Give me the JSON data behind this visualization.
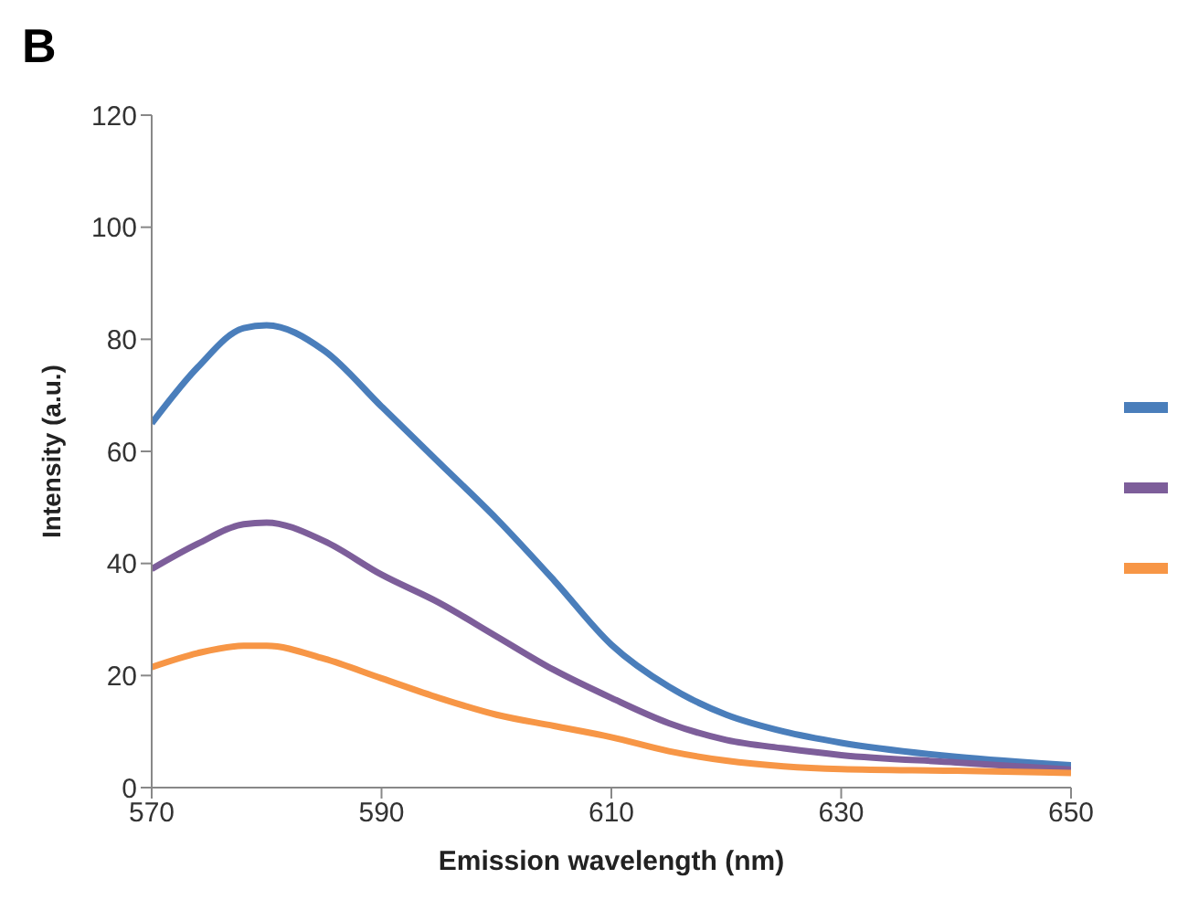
{
  "chart_data": {
    "type": "line",
    "title": "B",
    "xlabel": "Emission wavelength (nm)",
    "ylabel": "Intensity (a.u.)",
    "x": [
      570,
      574,
      578,
      580,
      585,
      590,
      595,
      600,
      605,
      610,
      615,
      620,
      625,
      630,
      640,
      650
    ],
    "series": [
      {
        "color": "#4a7ebb",
        "values": [
          65,
          75,
          82,
          82.5,
          78,
          68,
          58,
          48,
          37,
          25.5,
          18,
          13,
          10,
          8,
          5.5,
          4
        ]
      },
      {
        "color": "#7d5e9a",
        "values": [
          39,
          43.5,
          47,
          47.3,
          44,
          38,
          33,
          27,
          21,
          16,
          11.5,
          8.5,
          7,
          5.8,
          4.5,
          3.2
        ]
      },
      {
        "color": "#f79646",
        "values": [
          21.5,
          24,
          25.3,
          25.3,
          23,
          19.5,
          16,
          13,
          11,
          9,
          6.5,
          4.8,
          3.8,
          3.3,
          3,
          2.6
        ]
      }
    ],
    "xlim": [
      570,
      650
    ],
    "xticks": [
      570,
      590,
      610,
      630,
      650
    ],
    "ylim": [
      0,
      120
    ],
    "yticks": [
      0,
      20,
      40,
      60,
      80,
      100,
      120
    ],
    "grid": false,
    "marker": "none",
    "line_style": "solid"
  }
}
